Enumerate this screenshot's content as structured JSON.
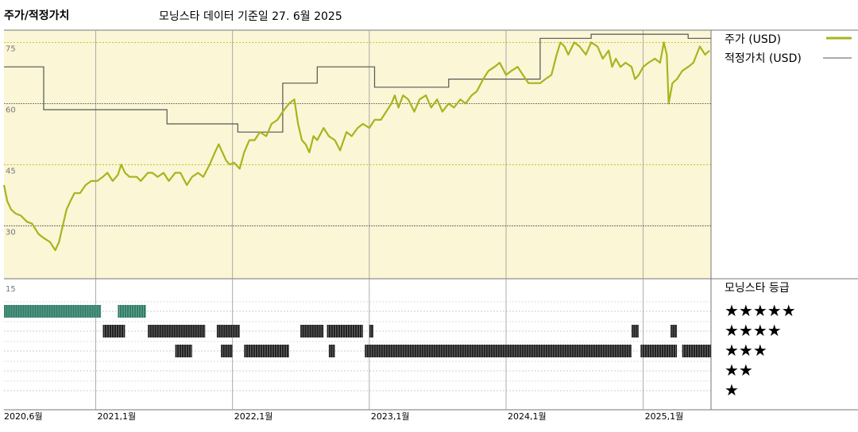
{
  "header": {
    "left_title": "주가/적정가치",
    "subtitle": "모닝스타 데이터 기준일 27. 6월 2025"
  },
  "colors": {
    "panel_bg": "#faf6d6",
    "price_line": "#a8b41e",
    "fair_value_line": "#555555",
    "rating_5": "#2e7d67",
    "rating_4": "#222222",
    "rating_3": "#222222",
    "grid": "#888888",
    "gold_grid": "#c5b000"
  },
  "legend": {
    "price_label": "주가 (USD)",
    "fair_value_label": "적정가치 (USD)",
    "rating_title": "모닝스타 등급",
    "stars": [
      "★★★★★",
      "★★★★",
      "★★★",
      "★★",
      "★"
    ]
  },
  "chart_data": [
    {
      "type": "line",
      "x_axis_type": "date",
      "y_ticks": [
        75,
        60,
        45,
        30
      ],
      "ylim": [
        17,
        78
      ],
      "xlim": [
        "2020-05-01",
        "2025-07-01"
      ],
      "x_tick_labels": [
        "2020,6월",
        "2021,1월",
        "2022,1월",
        "2023,1월",
        "2024,1월",
        "2025,1월"
      ],
      "x_tick_dates": [
        "2020-06-01",
        "2021-01-01",
        "2022-01-01",
        "2023-01-01",
        "2024-01-01",
        "2025-01-01"
      ],
      "series": [
        {
          "name": "주가 (USD)",
          "points": [
            [
              "2020-05-01",
              40
            ],
            [
              "2020-05-10",
              36
            ],
            [
              "2020-05-20",
              34
            ],
            [
              "2020-06-01",
              33
            ],
            [
              "2020-06-15",
              32.5
            ],
            [
              "2020-07-01",
              31
            ],
            [
              "2020-07-15",
              30.5
            ],
            [
              "2020-08-01",
              28
            ],
            [
              "2020-08-15",
              27
            ],
            [
              "2020-09-01",
              26
            ],
            [
              "2020-09-15",
              24
            ],
            [
              "2020-09-25",
              26
            ],
            [
              "2020-10-05",
              30
            ],
            [
              "2020-10-15",
              34
            ],
            [
              "2020-10-25",
              36
            ],
            [
              "2020-11-05",
              38
            ],
            [
              "2020-11-20",
              38
            ],
            [
              "2020-12-05",
              40
            ],
            [
              "2020-12-20",
              41
            ],
            [
              "2021-01-05",
              41
            ],
            [
              "2021-01-20",
              42
            ],
            [
              "2021-02-01",
              43
            ],
            [
              "2021-02-15",
              41
            ],
            [
              "2021-03-01",
              42.5
            ],
            [
              "2021-03-10",
              45
            ],
            [
              "2021-03-20",
              43
            ],
            [
              "2021-04-01",
              42
            ],
            [
              "2021-04-20",
              42
            ],
            [
              "2021-05-01",
              41
            ],
            [
              "2021-05-20",
              43
            ],
            [
              "2021-06-01",
              43
            ],
            [
              "2021-06-15",
              42
            ],
            [
              "2021-07-01",
              43
            ],
            [
              "2021-07-15",
              41
            ],
            [
              "2021-08-01",
              43
            ],
            [
              "2021-08-15",
              43
            ],
            [
              "2021-09-01",
              40
            ],
            [
              "2021-09-15",
              42
            ],
            [
              "2021-10-01",
              43
            ],
            [
              "2021-10-15",
              42
            ],
            [
              "2021-11-01",
              45
            ],
            [
              "2021-11-15",
              48
            ],
            [
              "2021-11-25",
              50
            ],
            [
              "2021-12-05",
              48
            ],
            [
              "2021-12-15",
              46
            ],
            [
              "2021-12-25",
              45
            ],
            [
              "2022-01-05",
              45.5
            ],
            [
              "2022-01-20",
              44
            ],
            [
              "2022-02-01",
              48
            ],
            [
              "2022-02-15",
              51
            ],
            [
              "2022-03-01",
              51
            ],
            [
              "2022-03-15",
              53
            ],
            [
              "2022-04-01",
              52
            ],
            [
              "2022-04-15",
              55
            ],
            [
              "2022-05-01",
              56
            ],
            [
              "2022-05-15",
              58
            ],
            [
              "2022-06-01",
              60
            ],
            [
              "2022-06-15",
              61
            ],
            [
              "2022-06-25",
              55
            ],
            [
              "2022-07-05",
              51
            ],
            [
              "2022-07-15",
              50
            ],
            [
              "2022-07-25",
              48
            ],
            [
              "2022-08-05",
              52
            ],
            [
              "2022-08-15",
              51
            ],
            [
              "2022-09-01",
              54
            ],
            [
              "2022-09-15",
              52
            ],
            [
              "2022-10-01",
              51
            ],
            [
              "2022-10-15",
              48.5
            ],
            [
              "2022-11-01",
              53
            ],
            [
              "2022-11-15",
              52
            ],
            [
              "2022-12-01",
              54
            ],
            [
              "2022-12-15",
              55
            ],
            [
              "2023-01-01",
              54
            ],
            [
              "2023-01-15",
              56
            ],
            [
              "2023-02-01",
              56
            ],
            [
              "2023-02-15",
              58
            ],
            [
              "2023-03-01",
              60
            ],
            [
              "2023-03-10",
              62
            ],
            [
              "2023-03-20",
              59
            ],
            [
              "2023-04-01",
              62
            ],
            [
              "2023-04-15",
              61
            ],
            [
              "2023-05-01",
              58
            ],
            [
              "2023-05-15",
              61
            ],
            [
              "2023-06-01",
              62
            ],
            [
              "2023-06-15",
              59
            ],
            [
              "2023-07-01",
              61
            ],
            [
              "2023-07-15",
              58
            ],
            [
              "2023-08-01",
              60
            ],
            [
              "2023-08-15",
              59
            ],
            [
              "2023-09-01",
              61
            ],
            [
              "2023-09-15",
              60
            ],
            [
              "2023-10-01",
              62
            ],
            [
              "2023-10-15",
              63
            ],
            [
              "2023-11-01",
              66
            ],
            [
              "2023-11-15",
              68
            ],
            [
              "2023-12-01",
              69
            ],
            [
              "2023-12-15",
              70
            ],
            [
              "2024-01-01",
              67
            ],
            [
              "2024-01-15",
              68
            ],
            [
              "2024-02-01",
              69
            ],
            [
              "2024-02-15",
              67
            ],
            [
              "2024-03-01",
              65
            ],
            [
              "2024-03-15",
              65
            ],
            [
              "2024-04-01",
              65
            ],
            [
              "2024-04-15",
              66
            ],
            [
              "2024-05-01",
              67
            ],
            [
              "2024-05-15",
              72
            ],
            [
              "2024-05-25",
              75
            ],
            [
              "2024-06-05",
              74
            ],
            [
              "2024-06-15",
              72
            ],
            [
              "2024-07-01",
              75
            ],
            [
              "2024-07-15",
              74
            ],
            [
              "2024-08-01",
              72
            ],
            [
              "2024-08-15",
              75
            ],
            [
              "2024-09-01",
              74
            ],
            [
              "2024-09-15",
              71
            ],
            [
              "2024-10-01",
              73
            ],
            [
              "2024-10-10",
              69
            ],
            [
              "2024-10-20",
              71
            ],
            [
              "2024-11-01",
              69
            ],
            [
              "2024-11-15",
              70
            ],
            [
              "2024-12-01",
              69
            ],
            [
              "2024-12-10",
              66
            ],
            [
              "2024-12-20",
              67
            ],
            [
              "2025-01-01",
              69
            ],
            [
              "2025-01-15",
              70
            ],
            [
              "2025-02-01",
              71
            ],
            [
              "2025-02-15",
              70
            ],
            [
              "2025-02-25",
              75
            ],
            [
              "2025-03-05",
              72
            ],
            [
              "2025-03-10",
              60
            ],
            [
              "2025-03-20",
              65
            ],
            [
              "2025-04-01",
              66
            ],
            [
              "2025-04-15",
              68
            ],
            [
              "2025-05-01",
              69
            ],
            [
              "2025-05-15",
              70
            ],
            [
              "2025-06-01",
              74
            ],
            [
              "2025-06-15",
              72
            ],
            [
              "2025-06-27",
              73
            ]
          ]
        },
        {
          "name": "적정가치 (USD)",
          "step_points": [
            [
              "2020-05-01",
              69
            ],
            [
              "2020-08-15",
              69
            ],
            [
              "2020-08-15",
              58.5
            ],
            [
              "2021-07-10",
              58.5
            ],
            [
              "2021-07-10",
              55
            ],
            [
              "2022-01-15",
              55
            ],
            [
              "2022-01-15",
              53
            ],
            [
              "2022-05-15",
              53
            ],
            [
              "2022-05-15",
              65
            ],
            [
              "2022-08-15",
              65
            ],
            [
              "2022-08-15",
              69
            ],
            [
              "2023-01-15",
              69
            ],
            [
              "2023-01-15",
              64
            ],
            [
              "2023-08-01",
              64
            ],
            [
              "2023-08-01",
              66
            ],
            [
              "2024-04-01",
              66
            ],
            [
              "2024-04-01",
              76
            ],
            [
              "2024-08-15",
              76
            ],
            [
              "2024-08-15",
              77
            ],
            [
              "2025-05-01",
              77
            ],
            [
              "2025-05-01",
              76
            ],
            [
              "2025-07-01",
              76
            ]
          ]
        }
      ]
    },
    {
      "type": "timeline",
      "title": "모닝스타 등급",
      "tick_label": "15",
      "rows": [
        {
          "stars": 5,
          "segments": [
            [
              "2020-05-01",
              "2021-01-15"
            ],
            [
              "2021-03-01",
              "2021-05-15"
            ]
          ]
        },
        {
          "stars": 4,
          "segments": [
            [
              "2021-01-20",
              "2021-03-20"
            ],
            [
              "2021-05-20",
              "2021-10-20"
            ],
            [
              "2021-11-20",
              "2022-01-20"
            ],
            [
              "2022-07-01",
              "2022-09-01"
            ],
            [
              "2022-09-10",
              "2022-12-15"
            ],
            [
              "2023-01-01",
              "2023-01-12"
            ],
            [
              "2024-12-01",
              "2024-12-20"
            ],
            [
              "2025-03-15",
              "2025-04-01"
            ]
          ]
        },
        {
          "stars": 3,
          "segments": [
            [
              "2021-08-01",
              "2021-09-15"
            ],
            [
              "2021-12-01",
              "2022-01-01"
            ],
            [
              "2022-02-01",
              "2022-06-01"
            ],
            [
              "2022-09-15",
              "2022-10-01"
            ],
            [
              "2022-12-20",
              "2024-12-01"
            ],
            [
              "2024-12-25",
              "2025-04-01"
            ],
            [
              "2025-04-15",
              "2025-07-01"
            ]
          ]
        },
        {
          "stars": 2,
          "segments": []
        },
        {
          "stars": 1,
          "segments": []
        }
      ]
    }
  ]
}
